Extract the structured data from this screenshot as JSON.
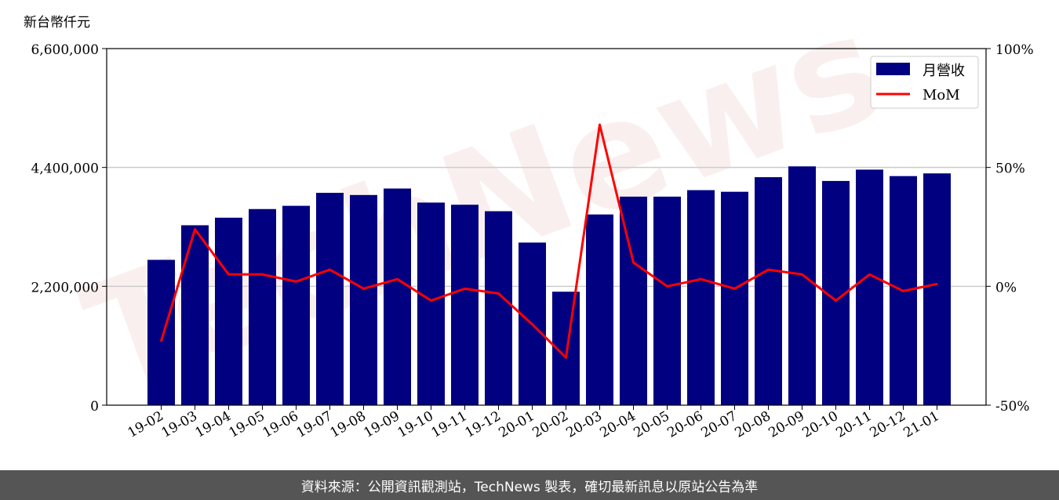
{
  "chart_data": {
    "type": "bar",
    "unit_label": "新台幣仟元",
    "categories": [
      "19-02",
      "19-03",
      "19-04",
      "19-05",
      "19-06",
      "19-07",
      "19-08",
      "19-09",
      "19-10",
      "19-11",
      "19-12",
      "20-01",
      "20-02",
      "20-03",
      "20-04",
      "20-05",
      "20-06",
      "20-07",
      "20-08",
      "20-09",
      "20-10",
      "20-11",
      "20-12",
      "21-01"
    ],
    "series": [
      {
        "name": "月營收",
        "axis": "left",
        "type": "bar",
        "color": "#000080",
        "values": [
          2690000,
          3330000,
          3470000,
          3630000,
          3690000,
          3930000,
          3890000,
          4010000,
          3750000,
          3710000,
          3590000,
          3010000,
          2100000,
          3530000,
          3860000,
          3860000,
          3980000,
          3950000,
          4220000,
          4420000,
          4150000,
          4360000,
          4240000,
          4290000
        ]
      },
      {
        "name": "MoM",
        "axis": "right",
        "type": "line",
        "color": "#ff0000",
        "values": [
          -23,
          24,
          5,
          5,
          2,
          7,
          -1,
          3,
          -6,
          -1,
          -3,
          -16,
          -30,
          68,
          10,
          0,
          3,
          -1,
          7,
          5,
          -6,
          5,
          -2,
          1
        ]
      }
    ],
    "ylim": [
      0,
      6600000
    ],
    "yticks": [
      "0",
      "2,200,000",
      "4,400,000",
      "6,600,000"
    ],
    "yticks_values": [
      0,
      2200000,
      4400000,
      6600000
    ],
    "y2lim": [
      -50,
      100
    ],
    "y2ticks": [
      "-50%",
      "0%",
      "50%",
      "100%"
    ],
    "y2ticks_values": [
      -50,
      0,
      50,
      100
    ],
    "grid": "horizontal",
    "legend_position": "top-right",
    "watermark": "TechNews"
  },
  "footer": {
    "text": "資料來源：公開資訊觀測站，TechNews 製表，確切最新訊息以原站公告為準"
  }
}
